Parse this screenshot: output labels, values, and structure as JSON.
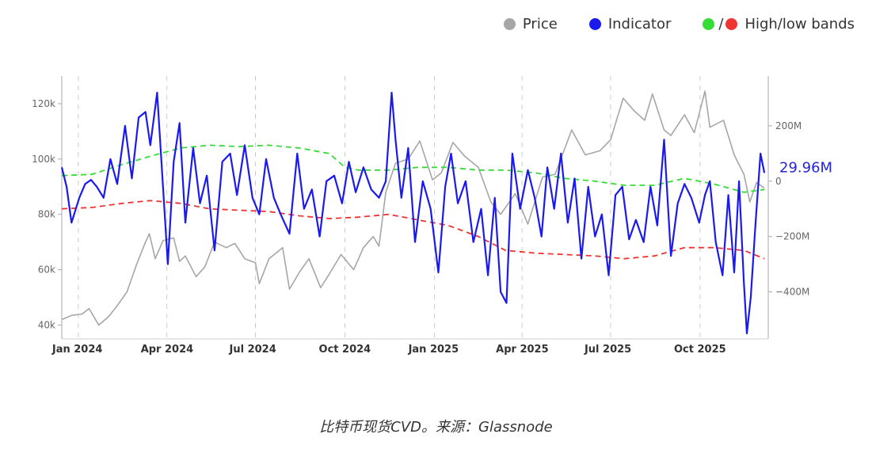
{
  "legend": {
    "price_label": "Price",
    "indicator_label": "Indicator",
    "bands_label": "High/low bands",
    "bands_sep": "/"
  },
  "caption": "比特币现货CVD。来源：Glassnode",
  "colors": {
    "price": "#a6a6a6",
    "indicator": "#1a1aee",
    "high_band": "#33dd33",
    "low_band": "#ee3333",
    "annotation": "#2525d8",
    "axis_text": "#666666",
    "grid": "#cccccc"
  },
  "chart_data": {
    "type": "line",
    "x_range": [
      "2023-12-15",
      "2025-12-10"
    ],
    "x_ticks": [
      {
        "date": "2024-01-01",
        "label": "Jan 2024"
      },
      {
        "date": "2024-04-01",
        "label": "Apr 2024"
      },
      {
        "date": "2024-07-01",
        "label": "Jul 2024"
      },
      {
        "date": "2024-10-01",
        "label": "Oct 2024"
      },
      {
        "date": "2025-01-01",
        "label": "Jan 2025"
      },
      {
        "date": "2025-04-01",
        "label": "Apr 2025"
      },
      {
        "date": "2025-07-01",
        "label": "Jul 2025"
      },
      {
        "date": "2025-10-01",
        "label": "Oct 2025"
      }
    ],
    "y_left": {
      "ylim": [
        35000,
        130000
      ],
      "ticks": [
        {
          "value": 40000,
          "label": "40k"
        },
        {
          "value": 60000,
          "label": "60k"
        },
        {
          "value": 80000,
          "label": "80k"
        },
        {
          "value": 100000,
          "label": "100k"
        },
        {
          "value": 120000,
          "label": "120k"
        }
      ]
    },
    "y_right": {
      "ylim": [
        -570,
        380
      ],
      "unit": "M",
      "ticks": [
        {
          "value": 200,
          "label": "200M"
        },
        {
          "value": 0,
          "label": "0"
        },
        {
          "value": -200,
          "label": "−200M"
        },
        {
          "value": -400,
          "label": "−400M"
        }
      ]
    },
    "annotation": {
      "label": "29.96M",
      "value": 29.96
    },
    "series": [
      {
        "name": "Price",
        "axis": "left",
        "points": [
          [
            "2023-12-15",
            42000
          ],
          [
            "2023-12-25",
            43500
          ],
          [
            "2024-01-05",
            44000
          ],
          [
            "2024-01-12",
            46000
          ],
          [
            "2024-01-22",
            40000
          ],
          [
            "2024-02-01",
            43000
          ],
          [
            "2024-02-10",
            47000
          ],
          [
            "2024-02-20",
            52000
          ],
          [
            "2024-03-01",
            62000
          ],
          [
            "2024-03-10",
            70000
          ],
          [
            "2024-03-14",
            73000
          ],
          [
            "2024-03-20",
            64000
          ],
          [
            "2024-03-28",
            70500
          ],
          [
            "2024-04-08",
            71500
          ],
          [
            "2024-04-14",
            63000
          ],
          [
            "2024-04-20",
            65000
          ],
          [
            "2024-05-01",
            57500
          ],
          [
            "2024-05-10",
            61000
          ],
          [
            "2024-05-20",
            70000
          ],
          [
            "2024-06-01",
            68000
          ],
          [
            "2024-06-10",
            69500
          ],
          [
            "2024-06-20",
            64000
          ],
          [
            "2024-07-01",
            62500
          ],
          [
            "2024-07-05",
            55000
          ],
          [
            "2024-07-15",
            64000
          ],
          [
            "2024-07-29",
            68000
          ],
          [
            "2024-08-05",
            53000
          ],
          [
            "2024-08-15",
            59000
          ],
          [
            "2024-08-25",
            64000
          ],
          [
            "2024-09-06",
            53500
          ],
          [
            "2024-09-15",
            58500
          ],
          [
            "2024-09-27",
            65500
          ],
          [
            "2024-10-10",
            60000
          ],
          [
            "2024-10-20",
            68000
          ],
          [
            "2024-10-30",
            72000
          ],
          [
            "2024-11-05",
            68500
          ],
          [
            "2024-11-12",
            88000
          ],
          [
            "2024-11-22",
            98500
          ],
          [
            "2024-12-05",
            100000
          ],
          [
            "2024-12-17",
            106500
          ],
          [
            "2024-12-30",
            92500
          ],
          [
            "2025-01-08",
            95000
          ],
          [
            "2025-01-20",
            106000
          ],
          [
            "2025-02-01",
            101000
          ],
          [
            "2025-02-15",
            97000
          ],
          [
            "2025-02-28",
            84500
          ],
          [
            "2025-03-10",
            80000
          ],
          [
            "2025-03-25",
            87500
          ],
          [
            "2025-04-07",
            76500
          ],
          [
            "2025-04-22",
            93500
          ],
          [
            "2025-05-05",
            94500
          ],
          [
            "2025-05-22",
            110500
          ],
          [
            "2025-06-05",
            101500
          ],
          [
            "2025-06-20",
            103000
          ],
          [
            "2025-07-01",
            107000
          ],
          [
            "2025-07-14",
            122000
          ],
          [
            "2025-07-25",
            117500
          ],
          [
            "2025-08-05",
            114000
          ],
          [
            "2025-08-13",
            123500
          ],
          [
            "2025-08-25",
            110500
          ],
          [
            "2025-09-01",
            108500
          ],
          [
            "2025-09-15",
            116000
          ],
          [
            "2025-09-25",
            109500
          ],
          [
            "2025-10-06",
            124500
          ],
          [
            "2025-10-11",
            111500
          ],
          [
            "2025-10-25",
            114000
          ],
          [
            "2025-11-05",
            101500
          ],
          [
            "2025-11-15",
            94500
          ],
          [
            "2025-11-21",
            84500
          ],
          [
            "2025-11-28",
            91500
          ],
          [
            "2025-12-06",
            89500
          ]
        ]
      },
      {
        "name": "Indicator",
        "axis": "right",
        "points": [
          [
            "2023-12-15",
            50
          ],
          [
            "2023-12-20",
            -20
          ],
          [
            "2023-12-25",
            -150
          ],
          [
            "2024-01-02",
            -60
          ],
          [
            "2024-01-08",
            -10
          ],
          [
            "2024-01-14",
            5
          ],
          [
            "2024-01-20",
            -20
          ],
          [
            "2024-01-27",
            -60
          ],
          [
            "2024-02-03",
            80
          ],
          [
            "2024-02-10",
            -10
          ],
          [
            "2024-02-18",
            200
          ],
          [
            "2024-02-25",
            10
          ],
          [
            "2024-03-03",
            230
          ],
          [
            "2024-03-10",
            250
          ],
          [
            "2024-03-15",
            130
          ],
          [
            "2024-03-22",
            320
          ],
          [
            "2024-03-28",
            -20
          ],
          [
            "2024-04-02",
            -300
          ],
          [
            "2024-04-08",
            70
          ],
          [
            "2024-04-14",
            210
          ],
          [
            "2024-04-20",
            -150
          ],
          [
            "2024-04-28",
            120
          ],
          [
            "2024-05-05",
            -80
          ],
          [
            "2024-05-12",
            20
          ],
          [
            "2024-05-20",
            -250
          ],
          [
            "2024-05-28",
            70
          ],
          [
            "2024-06-05",
            100
          ],
          [
            "2024-06-12",
            -50
          ],
          [
            "2024-06-20",
            130
          ],
          [
            "2024-06-28",
            -60
          ],
          [
            "2024-07-05",
            -120
          ],
          [
            "2024-07-12",
            80
          ],
          [
            "2024-07-20",
            -60
          ],
          [
            "2024-07-27",
            -120
          ],
          [
            "2024-08-05",
            -190
          ],
          [
            "2024-08-13",
            100
          ],
          [
            "2024-08-20",
            -100
          ],
          [
            "2024-08-28",
            -30
          ],
          [
            "2024-09-05",
            -200
          ],
          [
            "2024-09-12",
            0
          ],
          [
            "2024-09-20",
            20
          ],
          [
            "2024-09-28",
            -80
          ],
          [
            "2024-10-05",
            70
          ],
          [
            "2024-10-12",
            -40
          ],
          [
            "2024-10-20",
            50
          ],
          [
            "2024-10-28",
            -30
          ],
          [
            "2024-11-05",
            -60
          ],
          [
            "2024-11-12",
            0
          ],
          [
            "2024-11-18",
            320
          ],
          [
            "2024-11-22",
            150
          ],
          [
            "2024-11-28",
            -60
          ],
          [
            "2024-12-05",
            120
          ],
          [
            "2024-12-12",
            -220
          ],
          [
            "2024-12-20",
            0
          ],
          [
            "2024-12-28",
            -100
          ],
          [
            "2025-01-05",
            -330
          ],
          [
            "2025-01-12",
            -20
          ],
          [
            "2025-01-18",
            100
          ],
          [
            "2025-01-25",
            -80
          ],
          [
            "2025-02-02",
            0
          ],
          [
            "2025-02-10",
            -220
          ],
          [
            "2025-02-18",
            -100
          ],
          [
            "2025-02-25",
            -340
          ],
          [
            "2025-03-04",
            -60
          ],
          [
            "2025-03-10",
            -400
          ],
          [
            "2025-03-16",
            -440
          ],
          [
            "2025-03-22",
            100
          ],
          [
            "2025-03-30",
            -100
          ],
          [
            "2025-04-07",
            40
          ],
          [
            "2025-04-14",
            -60
          ],
          [
            "2025-04-21",
            -200
          ],
          [
            "2025-04-27",
            50
          ],
          [
            "2025-05-04",
            -100
          ],
          [
            "2025-05-11",
            100
          ],
          [
            "2025-05-18",
            -150
          ],
          [
            "2025-05-25",
            10
          ],
          [
            "2025-06-01",
            -280
          ],
          [
            "2025-06-08",
            -20
          ],
          [
            "2025-06-15",
            -200
          ],
          [
            "2025-06-22",
            -120
          ],
          [
            "2025-06-29",
            -340
          ],
          [
            "2025-07-06",
            -50
          ],
          [
            "2025-07-13",
            -20
          ],
          [
            "2025-07-20",
            -210
          ],
          [
            "2025-07-27",
            -140
          ],
          [
            "2025-08-04",
            -220
          ],
          [
            "2025-08-11",
            -20
          ],
          [
            "2025-08-18",
            -160
          ],
          [
            "2025-08-25",
            150
          ],
          [
            "2025-09-01",
            -270
          ],
          [
            "2025-09-08",
            -80
          ],
          [
            "2025-09-15",
            -10
          ],
          [
            "2025-09-22",
            -60
          ],
          [
            "2025-09-30",
            -150
          ],
          [
            "2025-10-06",
            -50
          ],
          [
            "2025-10-11",
            0
          ],
          [
            "2025-10-17",
            -220
          ],
          [
            "2025-10-24",
            -340
          ],
          [
            "2025-10-30",
            -50
          ],
          [
            "2025-11-05",
            -330
          ],
          [
            "2025-11-10",
            0
          ],
          [
            "2025-11-15",
            -370
          ],
          [
            "2025-11-18",
            -550
          ],
          [
            "2025-11-22",
            -420
          ],
          [
            "2025-11-27",
            -150
          ],
          [
            "2025-12-02",
            100
          ],
          [
            "2025-12-06",
            30
          ]
        ]
      },
      {
        "name": "High band",
        "axis": "right",
        "dashed": true,
        "points": [
          [
            "2023-12-15",
            20
          ],
          [
            "2024-01-15",
            25
          ],
          [
            "2024-02-15",
            60
          ],
          [
            "2024-03-15",
            90
          ],
          [
            "2024-04-15",
            120
          ],
          [
            "2024-05-15",
            130
          ],
          [
            "2024-06-15",
            125
          ],
          [
            "2024-07-15",
            130
          ],
          [
            "2024-08-15",
            120
          ],
          [
            "2024-09-15",
            100
          ],
          [
            "2024-10-01",
            50
          ],
          [
            "2024-10-15",
            40
          ],
          [
            "2024-11-15",
            40
          ],
          [
            "2024-12-15",
            50
          ],
          [
            "2025-01-15",
            50
          ],
          [
            "2025-02-15",
            40
          ],
          [
            "2025-03-15",
            40
          ],
          [
            "2025-04-15",
            30
          ],
          [
            "2025-05-15",
            10
          ],
          [
            "2025-06-15",
            0
          ],
          [
            "2025-07-15",
            -15
          ],
          [
            "2025-08-15",
            -15
          ],
          [
            "2025-09-15",
            10
          ],
          [
            "2025-10-15",
            -10
          ],
          [
            "2025-11-15",
            -40
          ],
          [
            "2025-12-06",
            -30
          ]
        ]
      },
      {
        "name": "Low band",
        "axis": "right",
        "dashed": true,
        "points": [
          [
            "2023-12-15",
            -100
          ],
          [
            "2024-01-15",
            -95
          ],
          [
            "2024-02-15",
            -80
          ],
          [
            "2024-03-15",
            -70
          ],
          [
            "2024-04-15",
            -80
          ],
          [
            "2024-05-15",
            -100
          ],
          [
            "2024-06-15",
            -105
          ],
          [
            "2024-07-15",
            -110
          ],
          [
            "2024-08-15",
            -125
          ],
          [
            "2024-09-15",
            -135
          ],
          [
            "2024-10-15",
            -130
          ],
          [
            "2024-11-15",
            -120
          ],
          [
            "2024-12-15",
            -140
          ],
          [
            "2025-01-15",
            -160
          ],
          [
            "2025-02-15",
            -200
          ],
          [
            "2025-03-15",
            -250
          ],
          [
            "2025-04-15",
            -260
          ],
          [
            "2025-05-15",
            -265
          ],
          [
            "2025-06-15",
            -270
          ],
          [
            "2025-07-15",
            -280
          ],
          [
            "2025-08-15",
            -270
          ],
          [
            "2025-09-15",
            -240
          ],
          [
            "2025-10-15",
            -240
          ],
          [
            "2025-11-15",
            -250
          ],
          [
            "2025-12-06",
            -280
          ]
        ]
      }
    ]
  }
}
